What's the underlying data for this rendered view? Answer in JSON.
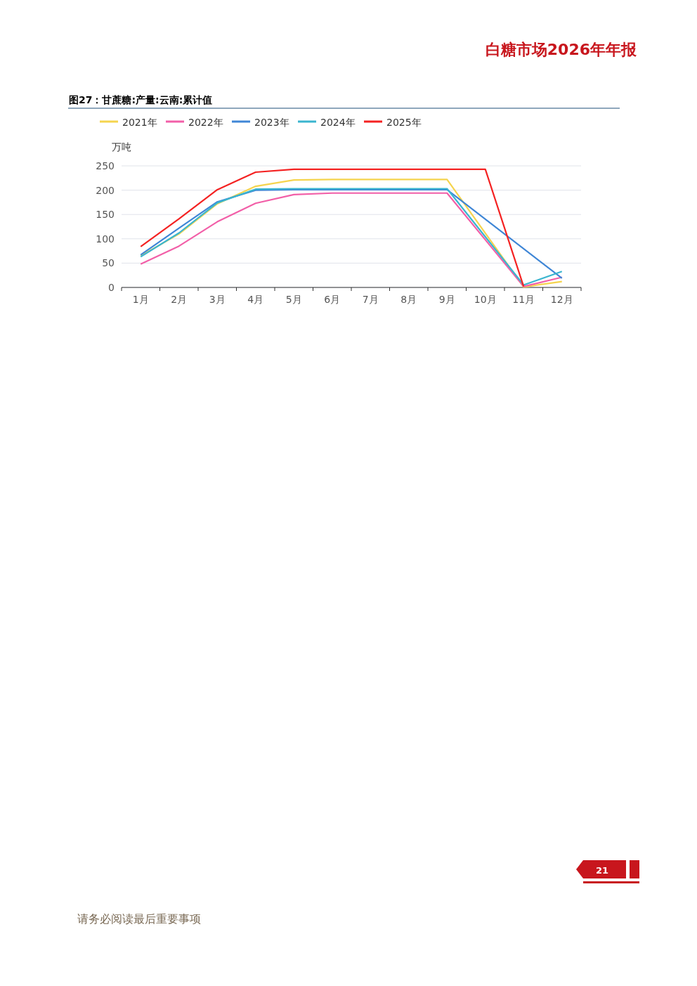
{
  "chart_data": {
    "type": "line",
    "title": "图27：甘蔗糖:产量:云南:累计值",
    "ylabel": "万吨",
    "annotations": [
      "白糖市场2026年年报",
      "21",
      "请务必阅读最后重要事项"
    ],
    "categories": [
      "1月",
      "2月",
      "3月",
      "4月",
      "5月",
      "6月",
      "7月",
      "8月",
      "9月",
      "10月",
      "11月",
      "12月"
    ],
    "series": [
      {
        "name": "2021年",
        "color": "#f5d44e",
        "values": [
          65,
          110,
          172,
          208,
          221,
          222,
          222,
          222,
          222,
          null,
          1,
          12
        ]
      },
      {
        "name": "2022年",
        "color": "#f25fa8",
        "values": [
          48,
          85,
          135,
          173,
          191,
          194,
          194,
          194,
          194,
          null,
          2,
          21
        ]
      },
      {
        "name": "2023年",
        "color": "#3f86d6",
        "values": [
          67,
          122,
          176,
          200,
          201,
          201,
          201,
          201,
          201,
          null,
          null,
          19
        ]
      },
      {
        "name": "2024年",
        "color": "#3ab5cf",
        "values": [
          63,
          112,
          174,
          202,
          203,
          203,
          203,
          203,
          203,
          null,
          5,
          33
        ]
      },
      {
        "name": "2025年",
        "color": "#f42222",
        "values": [
          84,
          141,
          201,
          237,
          243,
          243,
          243,
          243,
          243,
          243,
          2,
          null
        ]
      }
    ],
    "ylim": [
      0,
      250
    ],
    "yticks": [
      0,
      50,
      100,
      150,
      200,
      250
    ],
    "grid": "y",
    "legend": "top",
    "marker": "none",
    "line_style": "solid"
  }
}
